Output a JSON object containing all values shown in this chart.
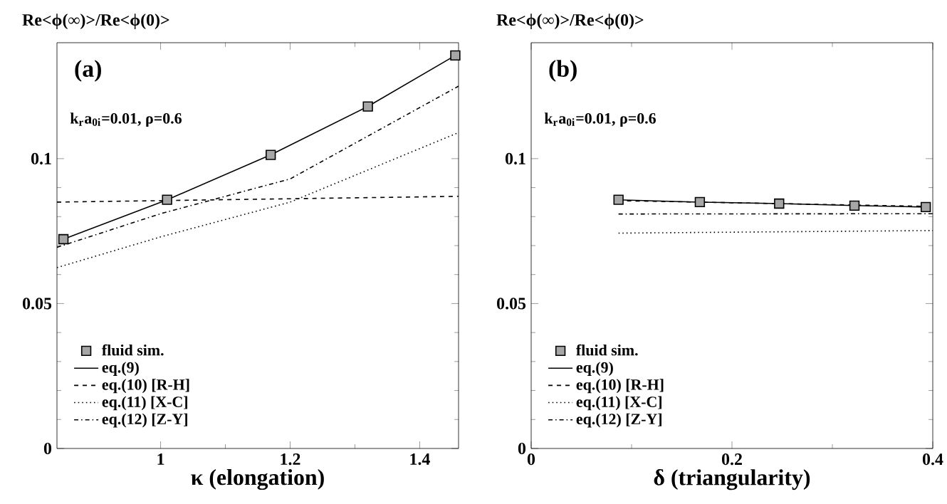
{
  "chart_data": [
    {
      "type": "line",
      "ylabel": "Re<ϕ(∞)>/Re<ϕ(0)>",
      "xlabel": "κ (elongation)",
      "annotations": [
        "(a)",
        "k$_{r}$a$_{0i}$=0.01, ρ=0.6"
      ],
      "xlim": [
        0.84,
        1.46
      ],
      "ylim": [
        0,
        0.14
      ],
      "xticks": [
        1,
        1.2,
        1.4
      ],
      "yticks": [
        0,
        0.05,
        0.1
      ],
      "grid": false,
      "legend": "bottom left",
      "series": [
        {
          "name": "fluid sim.",
          "type": "scatter",
          "marker": "square",
          "color": "#000000",
          "x": [
            0.85,
            1.01,
            1.17,
            1.32,
            1.455
          ],
          "values": [
            0.0722,
            0.0858,
            0.1013,
            0.118,
            0.1356
          ]
        },
        {
          "name": "eq.(9)",
          "line_style": "solid",
          "color": "#000000",
          "x": [
            0.85,
            1.01,
            1.17,
            1.32,
            1.455
          ],
          "values": [
            0.0722,
            0.0858,
            0.1013,
            0.118,
            0.1356
          ]
        },
        {
          "name": "eq.(10) [R-H]",
          "line_style": "dashed",
          "color": "#000000",
          "x": [
            0.84,
            1.46
          ],
          "values": [
            0.085,
            0.087
          ]
        },
        {
          "name": "eq.(11) [X-C]",
          "line_style": "dotted",
          "color": "#000000",
          "x": [
            0.84,
            1.0,
            1.2,
            1.46
          ],
          "values": [
            0.0624,
            0.073,
            0.085,
            0.109
          ]
        },
        {
          "name": "eq.(12) [Z-Y]",
          "line_style": "dashdot",
          "color": "#000000",
          "x": [
            0.84,
            1.0,
            1.2,
            1.46
          ],
          "values": [
            0.0694,
            0.081,
            0.093,
            0.125
          ]
        }
      ]
    },
    {
      "type": "line",
      "ylabel": "Re<ϕ(∞)>/Re<ϕ(0)>",
      "xlabel": "δ (triangularity)",
      "annotations": [
        "(b)",
        "k$_{r}$a$_{0i}$=0.01, ρ=0.6"
      ],
      "xlim": [
        0,
        0.4
      ],
      "ylim": [
        0,
        0.14
      ],
      "xticks": [
        0,
        0.2,
        0.4
      ],
      "yticks": [
        0,
        0.05,
        0.1
      ],
      "grid": false,
      "legend": "bottom left",
      "series": [
        {
          "name": "fluid sim.",
          "type": "scatter",
          "marker": "square",
          "color": "#000000",
          "x": [
            0.087,
            0.168,
            0.247,
            0.322,
            0.393
          ],
          "values": [
            0.0858,
            0.085,
            0.0845,
            0.0838,
            0.0833
          ]
        },
        {
          "name": "eq.(9)",
          "line_style": "solid",
          "color": "#000000",
          "x": [
            0.087,
            0.168,
            0.247,
            0.322,
            0.393
          ],
          "values": [
            0.0858,
            0.085,
            0.0845,
            0.0838,
            0.0833
          ]
        },
        {
          "name": "eq.(10) [R-H]",
          "line_style": "dashed",
          "color": "#000000",
          "x": [
            0.087,
            0.4
          ],
          "values": [
            0.0855,
            0.0835
          ]
        },
        {
          "name": "eq.(11) [X-C]",
          "line_style": "dotted",
          "color": "#000000",
          "x": [
            0.087,
            0.4
          ],
          "values": [
            0.0743,
            0.0752
          ]
        },
        {
          "name": "eq.(12) [Z-Y]",
          "line_style": "dashdot",
          "color": "#000000",
          "x": [
            0.087,
            0.4
          ],
          "values": [
            0.0809,
            0.081
          ]
        }
      ]
    }
  ]
}
